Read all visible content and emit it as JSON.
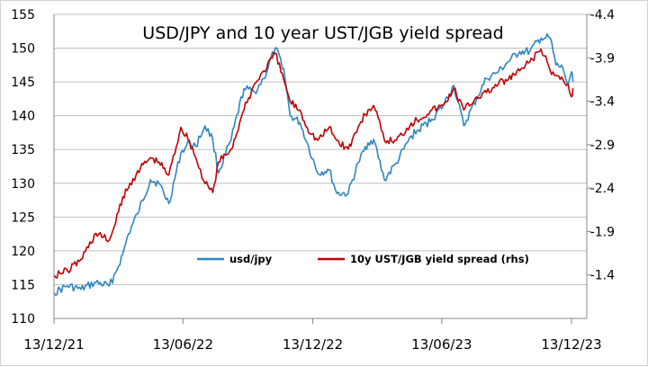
{
  "chart_data": {
    "type": "line",
    "title": "USD/JPY and 10 year UST/JGB yield spread",
    "x_ticks": [
      "13/12/21",
      "13/06/22",
      "13/12/22",
      "13/06/23",
      "13/12/23"
    ],
    "y_left": {
      "range": [
        110,
        155
      ],
      "ticks": [
        110,
        115,
        120,
        125,
        130,
        135,
        140,
        145,
        150,
        155
      ]
    },
    "y_right": {
      "range": [
        -0.9,
        -4.4
      ],
      "ticks": [
        -1.4,
        -1.9,
        -2.4,
        -2.9,
        -3.4,
        -3.9,
        -4.4
      ],
      "tick_labels": [
        "-1.4",
        "-1.9",
        "-2.4",
        "-2.9",
        "-3.4",
        "-3.9",
        "-4.4"
      ],
      "inverted": true
    },
    "grid": "horizontal",
    "legend_position": "center-right",
    "series": [
      {
        "name": "usd/jpy",
        "axis": "left",
        "color": "#2E86C1",
        "x": [
          "2021-12-13",
          "2022-01-01",
          "2022-01-20",
          "2022-02-10",
          "2022-03-01",
          "2022-03-10",
          "2022-03-20",
          "2022-03-28",
          "2022-04-10",
          "2022-04-28",
          "2022-05-10",
          "2022-05-24",
          "2022-06-10",
          "2022-06-22",
          "2022-07-01",
          "2022-07-14",
          "2022-07-25",
          "2022-08-02",
          "2022-08-20",
          "2022-09-07",
          "2022-09-22",
          "2022-10-05",
          "2022-10-21",
          "2022-11-02",
          "2022-11-11",
          "2022-11-25",
          "2022-12-05",
          "2022-12-20",
          "2023-01-05",
          "2023-01-16",
          "2023-02-01",
          "2023-02-15",
          "2023-03-01",
          "2023-03-09",
          "2023-03-24",
          "2023-04-10",
          "2023-05-01",
          "2023-05-30",
          "2023-06-15",
          "2023-06-30",
          "2023-07-14",
          "2023-08-01",
          "2023-08-15",
          "2023-09-01",
          "2023-09-15",
          "2023-10-01",
          "2023-10-15",
          "2023-10-31",
          "2023-11-13",
          "2023-11-21",
          "2023-12-01",
          "2023-12-08",
          "2023-12-13",
          "2023-12-15"
        ],
        "values": [
          113.8,
          114.8,
          114.3,
          115.3,
          114.8,
          116.8,
          119.5,
          122.5,
          125.5,
          130.5,
          130.0,
          127.0,
          134.5,
          136.0,
          135.5,
          138.5,
          136.5,
          131.5,
          136.5,
          144.0,
          143.5,
          145.5,
          150.0,
          147.0,
          140.0,
          139.0,
          136.0,
          131.5,
          132.0,
          128.5,
          128.5,
          133.0,
          136.0,
          136.5,
          130.5,
          133.0,
          137.0,
          139.5,
          141.5,
          144.5,
          138.5,
          142.5,
          145.5,
          146.5,
          148.0,
          149.5,
          149.5,
          151.5,
          151.5,
          147.5,
          147.0,
          144.5,
          146.5,
          145.0
        ]
      },
      {
        "name": "10y UST/JGB yield spread (rhs)",
        "axis": "right",
        "color": "#C00000",
        "x": [
          "2021-12-13",
          "2022-01-01",
          "2022-01-20",
          "2022-02-10",
          "2022-03-01",
          "2022-03-10",
          "2022-03-20",
          "2022-03-28",
          "2022-04-10",
          "2022-04-28",
          "2022-05-10",
          "2022-05-24",
          "2022-06-10",
          "2022-06-22",
          "2022-07-01",
          "2022-07-14",
          "2022-07-25",
          "2022-08-02",
          "2022-08-20",
          "2022-09-07",
          "2022-09-22",
          "2022-10-05",
          "2022-10-21",
          "2022-11-02",
          "2022-11-11",
          "2022-11-25",
          "2022-12-05",
          "2022-12-20",
          "2023-01-05",
          "2023-01-16",
          "2023-02-01",
          "2023-02-15",
          "2023-03-01",
          "2023-03-09",
          "2023-03-24",
          "2023-04-10",
          "2023-05-01",
          "2023-05-30",
          "2023-06-15",
          "2023-06-30",
          "2023-07-14",
          "2023-08-01",
          "2023-08-15",
          "2023-09-01",
          "2023-09-15",
          "2023-10-01",
          "2023-10-15",
          "2023-10-31",
          "2023-11-13",
          "2023-11-21",
          "2023-12-01",
          "2023-12-08",
          "2023-12-13",
          "2023-12-15"
        ],
        "values": [
          -1.4,
          -1.45,
          -1.58,
          -1.88,
          -1.8,
          -2.0,
          -2.3,
          -2.4,
          -2.6,
          -2.75,
          -2.7,
          -2.55,
          -3.1,
          -2.95,
          -2.75,
          -2.45,
          -2.35,
          -2.7,
          -2.85,
          -3.3,
          -3.6,
          -3.75,
          -3.95,
          -3.65,
          -3.4,
          -3.3,
          -3.1,
          -2.95,
          -3.1,
          -2.95,
          -2.85,
          -3.1,
          -3.3,
          -3.35,
          -2.95,
          -2.95,
          -3.15,
          -3.3,
          -3.35,
          -3.55,
          -3.3,
          -3.45,
          -3.5,
          -3.6,
          -3.65,
          -3.75,
          -3.85,
          -4.0,
          -3.75,
          -3.7,
          -3.65,
          -3.6,
          -3.45,
          -3.55
        ]
      }
    ]
  }
}
